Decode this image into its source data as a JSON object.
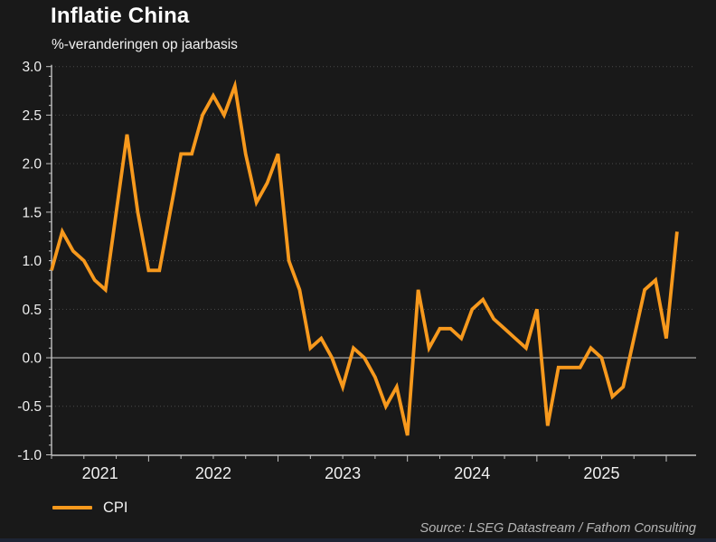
{
  "header": {
    "title": "Inflatie China",
    "subtitle": "%-veranderingen op jaarbasis"
  },
  "legend": {
    "series_label": "CPI"
  },
  "footer": {
    "source": "Source: LSEG Datastream / Fathom Consulting"
  },
  "colors": {
    "background": "#191919",
    "line": "#f7991d",
    "title_text": "#ffffff",
    "tick_text": "#f0f0f0",
    "axis": "#c2c2c2",
    "grid_dotted": "#4a4a4a",
    "zero_line": "#9b9b9b",
    "source_text": "#b5b5b5",
    "bottom_bar": "#1e2434"
  },
  "chart_data": {
    "type": "line",
    "title": "Inflatie China",
    "subtitle": "%-veranderingen op jaarbasis",
    "ylabel": "",
    "xlabel": "",
    "ylim": [
      -1.0,
      3.0
    ],
    "y_ticks": [
      3.0,
      2.5,
      2.0,
      1.5,
      1.0,
      0.5,
      0.0,
      -0.5,
      -1.0
    ],
    "y_minor_tick_step": 0.1,
    "x_tick_frequency": "quarterly, long tick at year start",
    "x_year_labels": [
      "2021",
      "2022",
      "2023",
      "2024",
      "2025"
    ],
    "grid": "dotted horizontal lines at 0.5 steps",
    "zero_line": true,
    "legend_position": "bottom-left",
    "series": [
      {
        "name": "CPI",
        "unit": "% change year-on-year",
        "frequency": "monthly",
        "months": [
          "2021-04",
          "2021-05",
          "2021-06",
          "2021-07",
          "2021-08",
          "2021-09",
          "2021-10",
          "2021-11",
          "2021-12",
          "2022-01",
          "2022-02",
          "2022-03",
          "2022-04",
          "2022-05",
          "2022-06",
          "2022-07",
          "2022-08",
          "2022-09",
          "2022-10",
          "2022-11",
          "2022-12",
          "2023-01",
          "2023-02",
          "2023-03",
          "2023-04",
          "2023-05",
          "2023-06",
          "2023-07",
          "2023-08",
          "2023-09",
          "2023-10",
          "2023-11",
          "2023-12",
          "2024-01",
          "2024-02",
          "2024-03",
          "2024-04",
          "2024-05",
          "2024-06",
          "2024-07",
          "2024-08",
          "2024-09",
          "2024-10",
          "2024-11",
          "2024-12",
          "2025-01",
          "2025-02",
          "2025-03",
          "2025-04",
          "2025-05",
          "2025-06",
          "2025-07",
          "2025-08",
          "2025-09",
          "2025-10",
          "2025-11",
          "2025-12",
          "2026-01",
          "2026-02"
        ],
        "values": [
          0.9,
          1.3,
          1.1,
          1.0,
          0.8,
          0.7,
          1.5,
          2.3,
          1.5,
          0.9,
          0.9,
          1.5,
          2.1,
          2.1,
          2.5,
          2.7,
          2.5,
          2.8,
          2.1,
          1.6,
          1.8,
          2.1,
          1.0,
          0.7,
          0.1,
          0.2,
          0.0,
          -0.3,
          0.1,
          0.0,
          -0.2,
          -0.5,
          -0.3,
          -0.8,
          0.7,
          0.1,
          0.3,
          0.3,
          0.2,
          0.5,
          0.6,
          0.4,
          0.3,
          0.2,
          0.1,
          0.5,
          -0.7,
          -0.1,
          -0.1,
          -0.1,
          0.1,
          0.0,
          -0.4,
          -0.3,
          0.2,
          0.7,
          0.8,
          0.2,
          1.3
        ]
      }
    ]
  }
}
